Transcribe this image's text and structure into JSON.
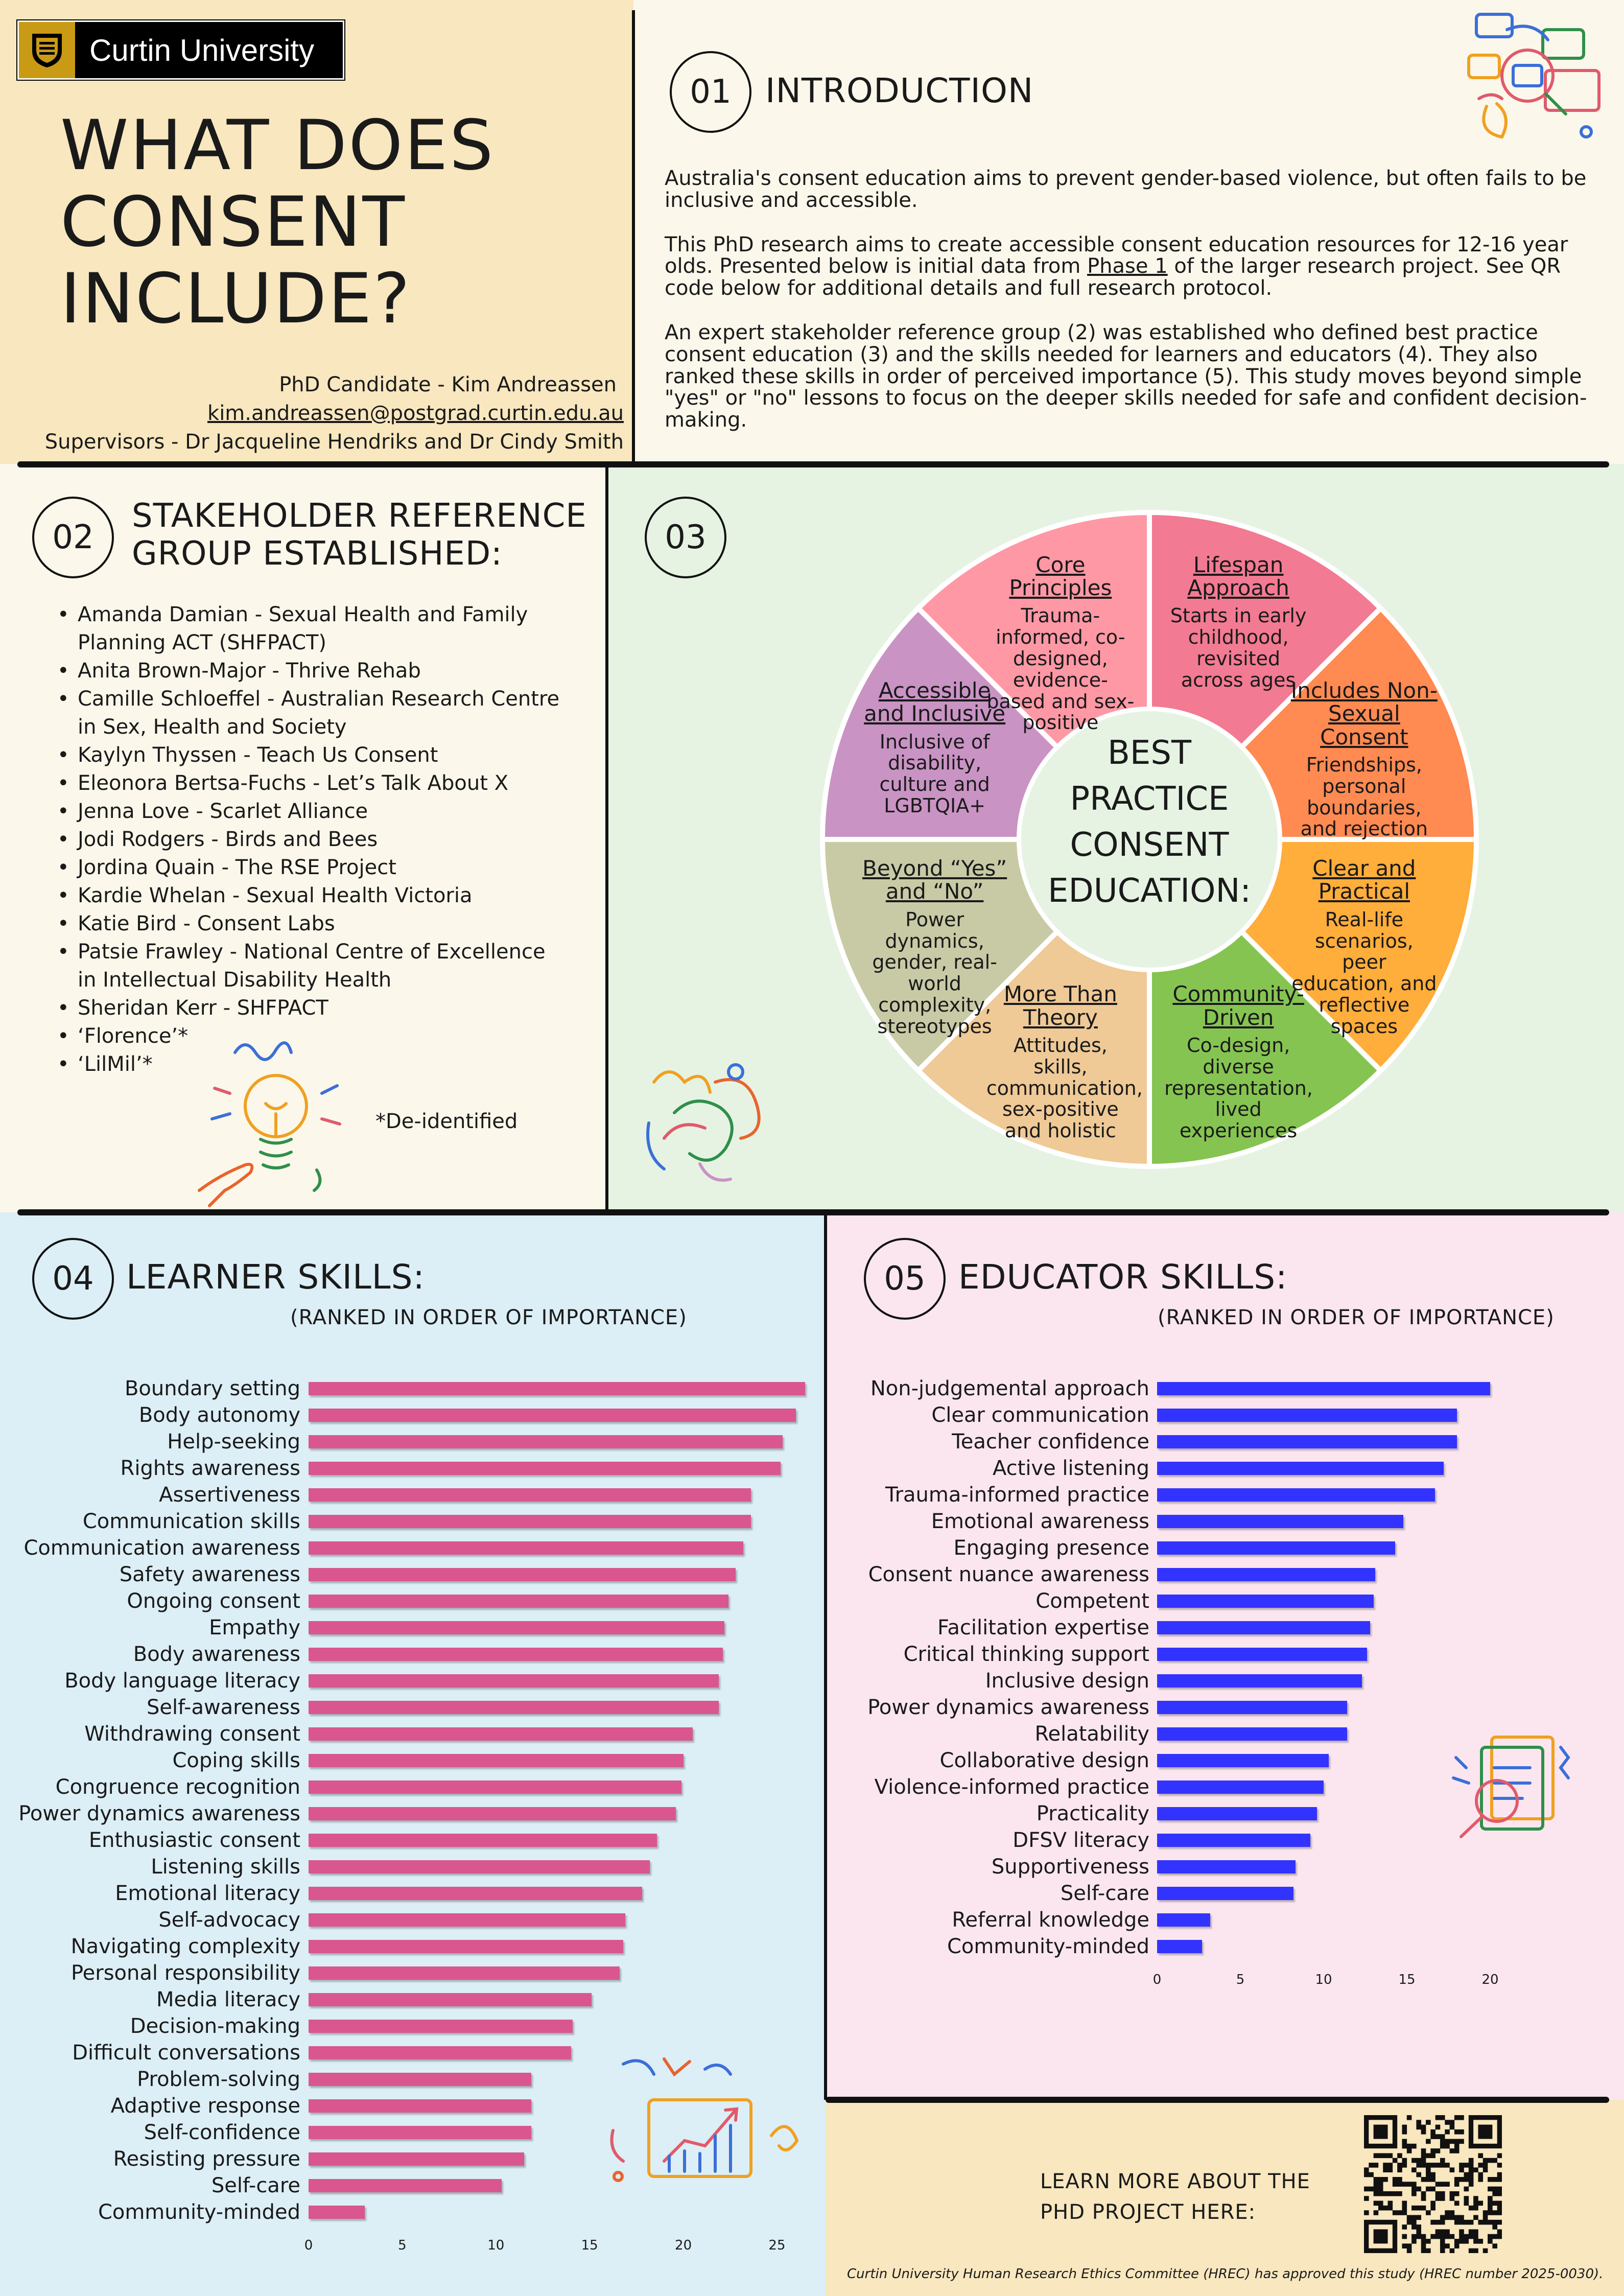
{
  "header": {
    "university_name": "Curtin University",
    "poster_title": "WHAT DOES CONSENT INCLUDE?",
    "candidate": "PhD Candidate - Kim Andreassen",
    "email": "kim.andreassen@postgrad.curtin.edu.au",
    "supervisors": "Supervisors - Dr Jacqueline Hendriks and Dr Cindy Smith"
  },
  "introduction": {
    "number": "01",
    "title": "INTRODUCTION",
    "paragraph1": "Australia's consent education aims to prevent gender-based violence, but often fails to be inclusive and accessible.",
    "paragraph2_before": "This PhD research aims to create accessible consent education resources for 12-16 year olds. Presented below is initial data from ",
    "paragraph2_link": "Phase 1",
    "paragraph2_after": " of the larger research project. See QR code below for additional details and full research protocol.",
    "paragraph3": "An expert stakeholder reference group (2) was established who defined best practice consent education (3) and the skills needed for learners and educators (4). They also ranked these skills in order of perceived importance (5). This study moves beyond simple \"yes\" or \"no\" lessons to focus on the deeper skills needed for safe and confident decision-making."
  },
  "stakeholders": {
    "number": "02",
    "title_line1": "STAKEHOLDER REFERENCE",
    "title_line2": "GROUP ESTABLISHED:",
    "members": [
      "Amanda Damian - Sexual Health and Family Planning ACT (SHFPACT)",
      "Anita Brown-Major - Thrive Rehab",
      "Camille Schloeffel - Australian Research Centre in Sex, Health and Society",
      "Kaylyn Thyssen - Teach Us Consent",
      "Eleonora Bertsa-Fuchs - Let’s Talk About X",
      "Jenna Love - Scarlet Alliance",
      "Jodi Rodgers - Birds and Bees",
      "Jordina Quain - The RSE Project",
      "Kardie Whelan - Sexual Health Victoria",
      "Katie Bird - Consent Labs",
      "Patsie Frawley - National Centre of Excellence in Intellectual Disability Health",
      "Sheridan Kerr - SHFPACT",
      "‘Florence’*",
      "‘LilMil’*"
    ],
    "footnote": "*De-identified"
  },
  "best_practice": {
    "number": "03",
    "center_lines": [
      "BEST",
      "PRACTICE",
      "CONSENT",
      "EDUCATION:"
    ],
    "wedges": [
      {
        "title": "Lifespan Approach",
        "desc": "Starts in early childhood, revisited across ages",
        "color": "#f27a92"
      },
      {
        "title": "Includes Non-Sexual Consent",
        "desc": "Friendships, personal boundaries, and rejection",
        "color": "#ff8a52"
      },
      {
        "title": "Clear and Practical",
        "desc": "Real-life scenarios, peer education, and reflective spaces",
        "color": "#ffad3b"
      },
      {
        "title": "Community-Driven",
        "desc": "Co-design, diverse representation, lived experiences",
        "color": "#86c452"
      },
      {
        "title": "More Than Theory",
        "desc": "Attitudes, skills, communication, sex-positive and holistic",
        "color": "#efc996"
      },
      {
        "title": "Beyond “Yes” and “No”",
        "desc": "Power dynamics, gender, real-world complexity, stereotypes",
        "color": "#c8caa5"
      },
      {
        "title": "Accessible and Inclusive",
        "desc": "Inclusive of disability, culture and LGBTQIA+",
        "color": "#c993c4"
      },
      {
        "title": "Core Principles",
        "desc": "Trauma-informed, co-designed, evidence-based and sex-positive",
        "color": "#ff98a5"
      }
    ]
  },
  "learner_skills": {
    "number": "04",
    "title": "LEARNER SKILLS:",
    "subtitle": "(RANKED IN ORDER OF IMPORTANCE)",
    "bar_color": "#d9578e",
    "chart_data": {
      "type": "bar",
      "orientation": "horizontal",
      "categories": [
        "Boundary setting",
        "Body autonomy",
        "Help-seeking",
        "Rights awareness",
        "Assertiveness",
        "Communication skills",
        "Communication awareness",
        "Safety awareness",
        "Ongoing consent",
        "Empathy",
        "Body awareness",
        "Body language literacy",
        "Self-awareness",
        "Withdrawing consent",
        "Coping skills",
        "Congruence recognition",
        "Power dynamics awareness",
        "Enthusiastic consent",
        "Listening skills",
        "Emotional literacy",
        "Self-advocacy",
        "Navigating complexity",
        "Personal responsibility",
        "Media literacy",
        "Decision-making",
        "Difficult conversations",
        "Problem-solving",
        "Adaptive response",
        "Self-confidence",
        "Resisting pressure",
        "Self-care",
        "Community-minded"
      ],
      "values": [
        26.5,
        26,
        25.3,
        25.2,
        23.6,
        23.6,
        23.2,
        22.8,
        22.4,
        22.2,
        22.1,
        21.9,
        21.9,
        20.5,
        20,
        19.9,
        19.6,
        18.6,
        18.2,
        17.8,
        16.9,
        16.8,
        16.6,
        15.1,
        14.1,
        14,
        11.9,
        11.9,
        11.9,
        11.5,
        10.3,
        3
      ],
      "xticks": [
        0,
        5,
        10,
        15,
        20,
        25
      ],
      "xlim": [
        0,
        26.5
      ]
    }
  },
  "educator_skills": {
    "number": "05",
    "title": "EDUCATOR SKILLS:",
    "subtitle": "(RANKED IN ORDER OF IMPORTANCE)",
    "bar_color": "#3333ff",
    "chart_data": {
      "type": "bar",
      "orientation": "horizontal",
      "categories": [
        "Non-judgemental approach",
        "Clear communication",
        "Teacher confidence",
        "Active listening",
        "Trauma-informed practice",
        "Emotional awareness",
        "Engaging presence",
        "Consent nuance awareness",
        "Competent",
        "Facilitation expertise",
        "Critical thinking support",
        "Inclusive design",
        "Power dynamics awareness",
        "Relatability",
        "Collaborative design",
        "Violence-informed practice",
        "Practicality",
        "DFSV literacy",
        "Supportiveness",
        "Self-care",
        "Referral knowledge",
        "Community-minded"
      ],
      "values": [
        20,
        18,
        18,
        17.2,
        16.7,
        14.8,
        14.3,
        13.1,
        13,
        12.8,
        12.6,
        12.3,
        11.4,
        11.4,
        10.3,
        10,
        9.6,
        9.2,
        8.3,
        8.2,
        3.2,
        2.7
      ],
      "xticks": [
        0,
        5,
        10,
        15,
        20
      ],
      "xlim": [
        0,
        20
      ]
    }
  },
  "learn_more": {
    "text_line1": "LEARN MORE ABOUT THE",
    "text_line2": "PHD PROJECT HERE:",
    "ethics": "Curtin University Human Research Ethics Committee (HREC) has approved this study (HREC number 2025-0030)."
  }
}
